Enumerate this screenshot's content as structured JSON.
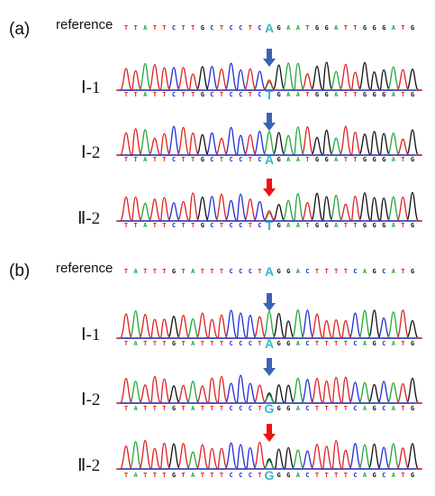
{
  "colors": {
    "A": "#22a83a",
    "C": "#1f2fd6",
    "G": "#111111",
    "T": "#e02020",
    "variant": "#35b8c8",
    "arrow_normal": "#3a63b8",
    "arrow_mutant": "#ee1111"
  },
  "panels": [
    {
      "label": "(a)",
      "reference": {
        "label": "reference",
        "sequence": "TTATTCTTGCTCCTCAGAATGGATTGGGATG"
      },
      "variant_index": 15,
      "samples": [
        {
          "label": "Ⅰ-1",
          "sequence": "TTATTCTTGCTCCTCTGAATGGATTGGGATG",
          "arrow": "blue-arrow"
        },
        {
          "label": "Ⅰ-2",
          "sequence": "TTATTCTTGCTCCTCAGAATGGATTGGGATG",
          "arrow": "blue-arrow"
        },
        {
          "label": "Ⅱ-2",
          "sequence": "TTATTCTTGCTCCTCTGAATGGATTGGGATG",
          "arrow": "red-arrow"
        }
      ]
    },
    {
      "label": "(b)",
      "reference": {
        "label": "reference",
        "sequence": "TATTTGTATTTCCCTAGGACTTTTCAGCATG"
      },
      "variant_index": 15,
      "samples": [
        {
          "label": "Ⅰ-1",
          "sequence": "TATTTGTATTTCCCTAGGACTTTTCAGCATG",
          "arrow": "blue-arrow"
        },
        {
          "label": "Ⅰ-2",
          "sequence": "TATTTGTATTTCCCTGGGACTTTTCAGCATG",
          "arrow": "blue-arrow"
        },
        {
          "label": "Ⅱ-2",
          "sequence": "TATTTGTATTTCCCTGGGACTTTTCAGCATG",
          "arrow": "red-arrow"
        }
      ]
    }
  ]
}
